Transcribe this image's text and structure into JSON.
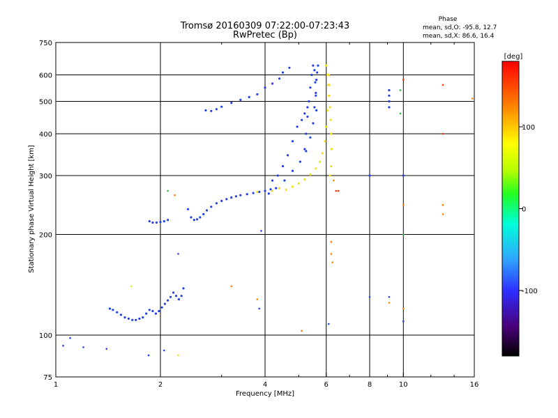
{
  "chart_data": {
    "type": "scatter",
    "title": "Tromsø 20160309 07:22:00-07:23:43",
    "subtitle": "RwPretec (Bp)",
    "xlabel": "Frequency [MHz]",
    "ylabel": "Stationary phase Virtual Height [km]",
    "xscale": "log",
    "yscale": "log",
    "xlim": [
      1,
      16
    ],
    "ylim": [
      75,
      750
    ],
    "x_ticks": [
      1,
      2,
      4,
      6,
      8,
      10,
      16
    ],
    "x_tick_labels": [
      "1",
      "2",
      "4",
      "6",
      "8",
      "10",
      "16"
    ],
    "y_ticks": [
      75,
      100,
      200,
      300,
      400,
      500,
      600,
      750
    ],
    "y_tick_labels": [
      "75",
      "100",
      "200",
      "300",
      "400",
      "500",
      "600",
      "750"
    ],
    "grid": true,
    "legend": {
      "title": "Phase",
      "line1": "mean, sd,O: -95.8, 12.7",
      "line2": "mean, sd,X:  86.6, 16.4"
    },
    "colorbar": {
      "label": "[deg]",
      "range": [
        -180,
        180
      ],
      "ticks": [
        100,
        0,
        -100
      ],
      "tick_labels": [
        "100",
        "0",
        "-100"
      ]
    },
    "series": [
      {
        "name": "O",
        "color": "#2040e8",
        "points": [
          [
            1.43,
            120
          ],
          [
            1.46,
            119
          ],
          [
            1.5,
            117
          ],
          [
            1.54,
            115
          ],
          [
            1.58,
            113
          ],
          [
            1.62,
            112
          ],
          [
            1.66,
            111
          ],
          [
            1.7,
            111
          ],
          [
            1.74,
            112
          ],
          [
            1.78,
            113
          ],
          [
            1.82,
            116
          ],
          [
            1.86,
            119
          ],
          [
            1.9,
            118
          ],
          [
            1.94,
            116
          ],
          [
            1.98,
            118
          ],
          [
            2.02,
            121
          ],
          [
            2.06,
            124
          ],
          [
            2.1,
            127
          ],
          [
            2.14,
            130
          ],
          [
            2.18,
            134
          ],
          [
            2.22,
            131
          ],
          [
            2.26,
            128
          ],
          [
            2.3,
            131
          ],
          [
            2.33,
            138
          ],
          [
            1.86,
            219
          ],
          [
            1.9,
            217
          ],
          [
            1.95,
            217
          ],
          [
            2.0,
            218
          ],
          [
            2.05,
            219
          ],
          [
            2.1,
            221
          ],
          [
            2.4,
            238
          ],
          [
            2.45,
            225
          ],
          [
            2.5,
            221
          ],
          [
            2.55,
            222
          ],
          [
            2.6,
            225
          ],
          [
            2.66,
            230
          ],
          [
            2.72,
            236
          ],
          [
            2.8,
            242
          ],
          [
            2.9,
            248
          ],
          [
            3.0,
            252
          ],
          [
            3.1,
            255
          ],
          [
            3.2,
            258
          ],
          [
            3.3,
            260
          ],
          [
            3.4,
            262
          ],
          [
            3.55,
            264
          ],
          [
            3.7,
            266
          ],
          [
            3.85,
            268
          ],
          [
            4.0,
            270
          ],
          [
            4.15,
            273
          ],
          [
            4.2,
            290
          ],
          [
            4.35,
            300
          ],
          [
            4.5,
            320
          ],
          [
            4.65,
            345
          ],
          [
            4.8,
            380
          ],
          [
            4.95,
            420
          ],
          [
            5.1,
            440
          ],
          [
            5.2,
            460
          ],
          [
            5.3,
            480
          ],
          [
            4.1,
            265
          ],
          [
            4.3,
            275
          ],
          [
            4.55,
            290
          ],
          [
            4.8,
            310
          ],
          [
            5.05,
            330
          ],
          [
            5.25,
            355
          ],
          [
            5.4,
            390
          ],
          [
            5.5,
            430
          ],
          [
            5.55,
            480
          ],
          [
            5.6,
            530
          ],
          [
            5.62,
            580
          ],
          [
            5.65,
            610
          ],
          [
            5.68,
            640
          ],
          [
            5.2,
            360
          ],
          [
            5.25,
            400
          ],
          [
            5.3,
            450
          ],
          [
            5.35,
            500
          ],
          [
            5.4,
            550
          ],
          [
            5.45,
            600
          ],
          [
            5.5,
            640
          ],
          [
            5.55,
            620
          ],
          [
            5.58,
            570
          ],
          [
            5.6,
            520
          ],
          [
            5.62,
            470
          ],
          [
            2.7,
            470
          ],
          [
            2.8,
            468
          ],
          [
            2.9,
            474
          ],
          [
            3.0,
            482
          ],
          [
            3.2,
            495
          ],
          [
            3.4,
            505
          ],
          [
            3.6,
            515
          ],
          [
            3.8,
            525
          ],
          [
            4.0,
            550
          ],
          [
            4.2,
            565
          ],
          [
            4.4,
            585
          ],
          [
            4.5,
            610
          ],
          [
            4.7,
            630
          ],
          [
            9.1,
            540
          ],
          [
            9.1,
            520
          ],
          [
            9.1,
            500
          ],
          [
            9.1,
            480
          ],
          [
            8.0,
            300
          ],
          [
            10.0,
            300
          ]
        ]
      },
      {
        "name": "X",
        "color": "#f0e020",
        "points": [
          [
            4.6,
            272
          ],
          [
            4.8,
            278
          ],
          [
            5.0,
            284
          ],
          [
            5.2,
            292
          ],
          [
            5.4,
            302
          ],
          [
            5.6,
            315
          ],
          [
            5.75,
            330
          ],
          [
            5.85,
            350
          ],
          [
            5.95,
            380
          ],
          [
            6.0,
            420
          ],
          [
            6.05,
            470
          ],
          [
            6.1,
            520
          ],
          [
            6.12,
            560
          ],
          [
            6.1,
            600
          ],
          [
            6.0,
            640
          ],
          [
            6.05,
            600
          ],
          [
            6.08,
            560
          ],
          [
            6.12,
            520
          ],
          [
            6.15,
            480
          ],
          [
            6.18,
            440
          ],
          [
            6.2,
            400
          ],
          [
            6.22,
            360
          ],
          [
            6.2,
            320
          ],
          [
            6.15,
            300
          ],
          [
            4.2,
            270
          ],
          [
            4.4,
            275
          ],
          [
            3.8,
            268
          ]
        ]
      }
    ],
    "scatter_noise": [
      [
        1.05,
        93,
        "#2040e8"
      ],
      [
        1.1,
        98,
        "#2040e8"
      ],
      [
        1.2,
        92,
        "#2040e8"
      ],
      [
        1.4,
        91,
        "#2040e8"
      ],
      [
        1.65,
        140,
        "#f0e020"
      ],
      [
        1.85,
        87,
        "#2040e8"
      ],
      [
        2.05,
        90,
        "#2040e8"
      ],
      [
        2.25,
        87,
        "#f0e020"
      ],
      [
        2.25,
        175,
        "#2040e8"
      ],
      [
        2.2,
        262,
        "#ff8000"
      ],
      [
        2.1,
        270,
        "#20c040"
      ],
      [
        3.2,
        140,
        "#ff8000"
      ],
      [
        3.8,
        128,
        "#ff8000"
      ],
      [
        3.85,
        120,
        "#2040e8"
      ],
      [
        3.9,
        205,
        "#2040e8"
      ],
      [
        5.1,
        103,
        "#ff8000"
      ],
      [
        6.1,
        108,
        "#2040e8"
      ],
      [
        6.2,
        190,
        "#ff8000"
      ],
      [
        6.2,
        175,
        "#ff8000"
      ],
      [
        6.25,
        165,
        "#ff8000"
      ],
      [
        6.3,
        290,
        "#ff8000"
      ],
      [
        6.4,
        270,
        "#ff3000"
      ],
      [
        6.5,
        270,
        "#ff3000"
      ],
      [
        8.0,
        130,
        "#2040e8"
      ],
      [
        9.1,
        130,
        "#2040e8"
      ],
      [
        9.1,
        125,
        "#ff8000"
      ],
      [
        10.0,
        120,
        "#ff8000"
      ],
      [
        10.0,
        110,
        "#2040e8"
      ],
      [
        10.0,
        200,
        "#20c040"
      ],
      [
        10.0,
        245,
        "#ff8000"
      ],
      [
        10.0,
        580,
        "#ff3000"
      ],
      [
        13.0,
        560,
        "#ff3000"
      ],
      [
        13.0,
        400,
        "#ff3000"
      ],
      [
        13.0,
        245,
        "#ff8000"
      ],
      [
        13.0,
        230,
        "#ff8000"
      ],
      [
        15.8,
        510,
        "#ff8000"
      ],
      [
        9.8,
        460,
        "#20c040"
      ],
      [
        9.8,
        540,
        "#20c040"
      ]
    ]
  }
}
